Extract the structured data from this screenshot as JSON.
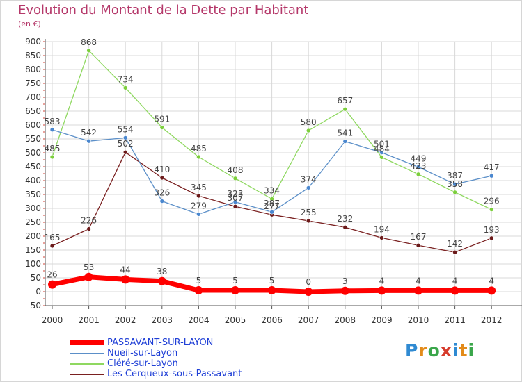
{
  "title": "Evolution du Montant de la Dette par Habitant",
  "subtitle": "(en €)",
  "logo": {
    "letters": [
      "P",
      "r",
      "o",
      "x",
      "i",
      "t",
      "i"
    ],
    "colors": [
      "#2f8ad2",
      "#e38b1a",
      "#3aa64a",
      "#d63b2c",
      "#2f8ad2",
      "#e38b1a",
      "#3aa64a"
    ]
  },
  "colors": {
    "title": "#b5386a",
    "grid": "#d8d8d8",
    "axis": "#555555",
    "minor_tick": "#d0463a"
  },
  "chart_data": {
    "type": "line",
    "x": [
      "2000",
      "2001",
      "2002",
      "2003",
      "2004",
      "2005",
      "2006",
      "2007",
      "2008",
      "2009",
      "2010",
      "2011",
      "2012"
    ],
    "ylim": [
      -50,
      900
    ],
    "yticks": [
      "-50",
      "0",
      "50",
      "100",
      "150",
      "200",
      "250",
      "300",
      "350",
      "400",
      "450",
      "500",
      "550",
      "600",
      "650",
      "700",
      "750",
      "800",
      "850",
      "900"
    ],
    "grid": true,
    "legend_position": "bottom-left",
    "series": [
      {
        "name": "PASSAVANT-SUR-LAYON",
        "color": "#ff0000",
        "text_color": "#1f3fd6",
        "values": [
          26,
          53,
          44,
          38,
          5,
          5,
          5,
          0,
          3,
          4,
          4,
          4,
          4
        ],
        "labels": [
          "26",
          "53",
          "44",
          "38",
          "5",
          "5",
          "5",
          "0",
          "3",
          "4",
          "4",
          "4",
          "4"
        ]
      },
      {
        "name": "Nueil-sur-Layon",
        "color": "#5b8fc8",
        "marker": "#4a87cf",
        "values": [
          583,
          542,
          554,
          326,
          279,
          323,
          287,
          374,
          541,
          501,
          449,
          387,
          417
        ],
        "labels": [
          "583",
          "542",
          "554",
          "326",
          "279",
          "323",
          "287",
          "374",
          "541",
          "501",
          "449",
          "387",
          "417"
        ]
      },
      {
        "name": "Cléré-sur-Layon",
        "color": "#8fd860",
        "marker": "#7ccf3c",
        "values": [
          485,
          868,
          734,
          591,
          485,
          408,
          334,
          580,
          657,
          484,
          423,
          358,
          296
        ],
        "labels": [
          "485",
          "868",
          "734",
          "591",
          "485",
          "408",
          "334",
          "580",
          "657",
          "484",
          "423",
          "358",
          "296"
        ]
      },
      {
        "name": "Les Cerqueux-sous-Passavant",
        "color": "#7a2020",
        "marker": "#6b1a1a",
        "values": [
          165,
          226,
          502,
          410,
          345,
          307,
          277,
          255,
          232,
          194,
          167,
          142,
          193
        ],
        "labels": [
          "165",
          "226",
          "502",
          "410",
          "345",
          "307",
          "277",
          "255",
          "232",
          "194",
          "167",
          "142",
          "193"
        ]
      }
    ]
  }
}
